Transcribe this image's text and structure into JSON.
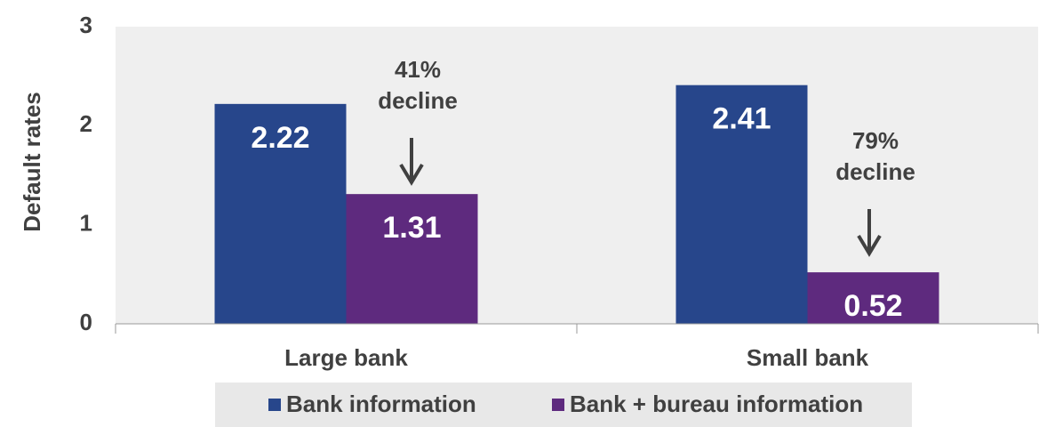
{
  "chart_data": {
    "type": "bar",
    "y_axis_label": "Default rates",
    "categories": [
      "Large bank",
      "Small bank"
    ],
    "series": [
      {
        "name": "Bank information",
        "color": "#27468b",
        "values": [
          2.22,
          2.41
        ]
      },
      {
        "name": "Bank + bureau information",
        "color": "#5e2a7e",
        "values": [
          1.31,
          0.52
        ]
      }
    ],
    "annotations": [
      [
        "41%",
        "decline"
      ],
      [
        "79%",
        "decline"
      ]
    ],
    "ylim": [
      0,
      3
    ],
    "yticks": [
      0,
      1,
      2,
      3
    ],
    "grid": false,
    "legend": "bottom"
  }
}
